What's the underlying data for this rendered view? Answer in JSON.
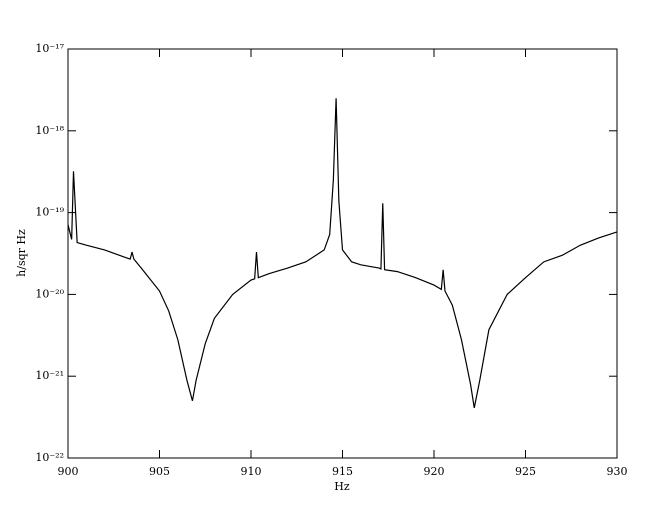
{
  "chart_data": {
    "type": "line",
    "x_label": "Hz",
    "y_label": "h/sqr Hz",
    "y_log": true,
    "xlim": [
      900,
      930
    ],
    "xticks": [
      900,
      905,
      910,
      915,
      920,
      925,
      930
    ],
    "ylim": [
      1e-22,
      1e-17
    ],
    "yticks": [
      {
        "value": 1e-22,
        "label": "10⁻²²"
      },
      {
        "value": 1e-21,
        "label": "10⁻²¹"
      },
      {
        "value": 1e-20,
        "label": "10⁻²⁰"
      },
      {
        "value": 1e-19,
        "label": "10⁻¹⁹"
      },
      {
        "value": 1e-18,
        "label": "10⁻¹⁸"
      },
      {
        "value": 1e-17,
        "label": "10⁻¹⁷"
      }
    ],
    "x": [
      900.0,
      900.2,
      900.3,
      900.5,
      901,
      902,
      903,
      903.4,
      903.5,
      903.6,
      904,
      905,
      905.5,
      906,
      906.5,
      906.8,
      907.0,
      907.5,
      908,
      909,
      910,
      910.2,
      910.3,
      910.4,
      911,
      912,
      913,
      914,
      914.3,
      914.5,
      914.65,
      914.8,
      915,
      915.5,
      916,
      917,
      917.1,
      917.2,
      917.3,
      918,
      919,
      920,
      920.4,
      920.5,
      920.6,
      921,
      921.5,
      922,
      922.2,
      922.5,
      923,
      924,
      925,
      926,
      927,
      928,
      929,
      930
    ],
    "series": [
      {
        "name": "h/sqr Hz",
        "color": "#000000",
        "values": [
          7.1e-20,
          4.7e-20,
          3.2e-19,
          4.3e-20,
          4e-20,
          3.5e-20,
          2.9e-20,
          2.7e-20,
          3.3e-20,
          2.7e-20,
          2.1e-20,
          1.1e-20,
          6.3e-21,
          2.8e-21,
          8.9e-22,
          5e-22,
          8.9e-22,
          2.5e-21,
          5.1e-21,
          1e-20,
          1.5e-20,
          1.55e-20,
          3.3e-20,
          1.6e-20,
          1.8e-20,
          2.1e-20,
          2.5e-20,
          3.5e-20,
          5.4e-20,
          2.5e-19,
          2.5e-18,
          1.4e-19,
          3.5e-20,
          2.5e-20,
          2.3e-20,
          2.1e-20,
          2.05e-20,
          1.3e-19,
          2e-20,
          1.9e-20,
          1.6e-20,
          1.3e-20,
          1.15e-20,
          2e-20,
          1.1e-20,
          7.4e-21,
          2.8e-21,
          7.9e-22,
          4.1e-22,
          8.9e-22,
          3.7e-21,
          1e-20,
          1.6e-20,
          2.5e-20,
          3e-20,
          4e-20,
          4.9e-20,
          5.8e-20
        ]
      }
    ]
  }
}
